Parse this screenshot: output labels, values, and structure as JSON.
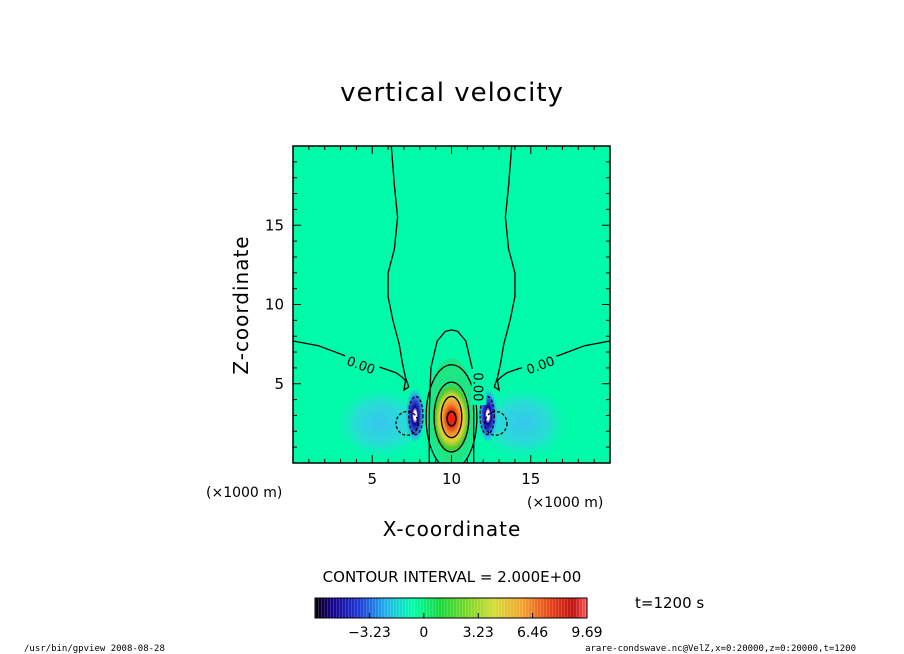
{
  "chart_data": {
    "type": "heatmap",
    "title": "vertical velocity",
    "xlabel": "X-coordinate",
    "ylabel": "Z-coordinate",
    "xunit": "(×1000 m)",
    "yunit": "(×1000 m)",
    "xlim": [
      0,
      20
    ],
    "ylim": [
      0,
      20
    ],
    "xticks": [
      5,
      10,
      15
    ],
    "yticks": [
      5,
      10,
      15
    ],
    "contour_interval_text": "CONTOUR INTERVAL = 2.000E+00",
    "contour_labels": [
      "0.00",
      "0.00",
      "0.00"
    ],
    "colorbar": {
      "min": -6.46,
      "max": 9.69,
      "ticks": [
        -3.23,
        0,
        3.23,
        6.46,
        9.69
      ],
      "tick_labels": [
        "−3.23",
        "0",
        "3.23",
        "6.46",
        "9.69"
      ]
    },
    "features": [
      {
        "kind": "updraft",
        "x": 10,
        "z": 2.8,
        "peak": 9.7
      },
      {
        "kind": "downdraft",
        "x": 7.7,
        "z": 3.0,
        "peak": -6.5
      },
      {
        "kind": "downdraft",
        "x": 12.3,
        "z": 3.0,
        "peak": -6.5
      },
      {
        "kind": "weak_downdraft",
        "x": 5.5,
        "z": 2.5,
        "peak": -2.2
      },
      {
        "kind": "weak_downdraft",
        "x": 14.5,
        "z": 2.5,
        "peak": -2.2
      }
    ],
    "time_text": "t=1200 s"
  },
  "footer": {
    "left": "/usr/bin/gpview   2008-08-28",
    "right": "arare-condswave.nc@VelZ,x=0:20000,z=0:20000,t=1200"
  }
}
